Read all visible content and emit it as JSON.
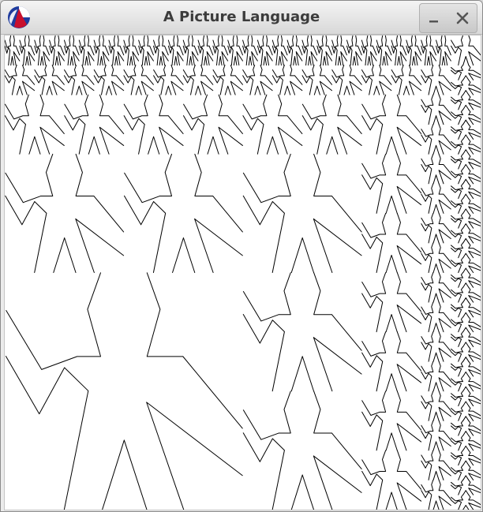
{
  "window": {
    "title": "A Picture Language"
  },
  "icons": {
    "app": "racket-logo-icon",
    "minimize": "minimize-icon",
    "close": "close-icon"
  },
  "colors": {
    "titlebar": "#dedede",
    "title_text": "#3c3c3c",
    "canvas_bg": "#ffffff",
    "stroke": "#000000",
    "logo_blue": "#1f3c9e",
    "logo_red": "#c8102e"
  },
  "canvas": {
    "painter": "wave",
    "composition": "corner-split",
    "recursion_depth": 4
  }
}
